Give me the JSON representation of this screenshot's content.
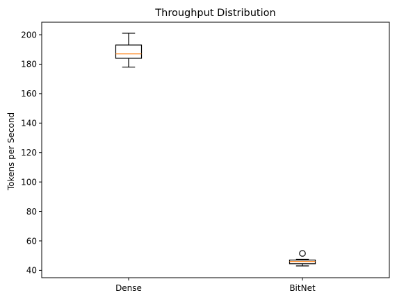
{
  "chart_data": {
    "type": "box",
    "title": "Throughput Distribution",
    "xlabel": "",
    "ylabel": "Tokens per Second",
    "categories": [
      "Dense",
      "BitNet"
    ],
    "ylim": [
      35,
      208.5
    ],
    "yticks": [
      40,
      60,
      80,
      100,
      120,
      140,
      160,
      180,
      200
    ],
    "grid": false,
    "series": [
      {
        "category": "Dense",
        "whisker_low": 178,
        "q1": 184,
        "median": 187,
        "q3": 193,
        "whisker_high": 201,
        "outliers": []
      },
      {
        "category": "BitNet",
        "whisker_low": 43,
        "q1": 44.5,
        "median": 46,
        "q3": 47,
        "whisker_high": 47.5,
        "outliers": [
          51.5
        ]
      }
    ],
    "colors": {
      "box": "#000000",
      "median": "#ff7f0e",
      "axes": "#000000"
    }
  }
}
